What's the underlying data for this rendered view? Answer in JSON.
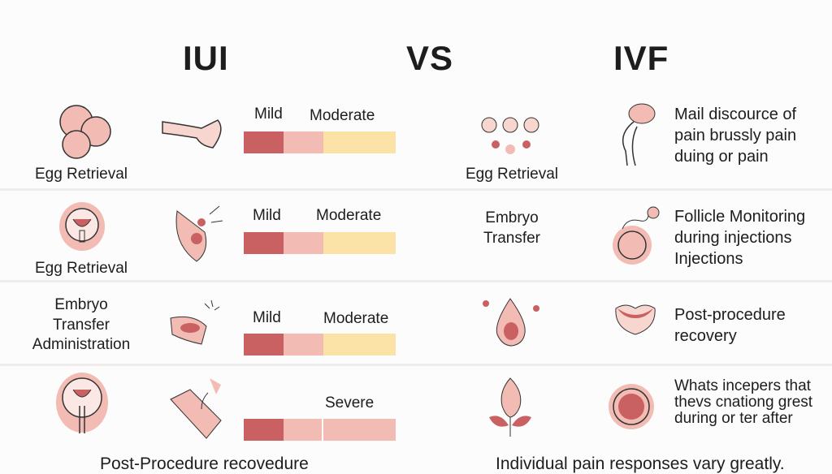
{
  "headers": {
    "left": "IUI",
    "middle": "VS",
    "right": "IVF"
  },
  "colors": {
    "severe": "#c96062",
    "mild": "#f2bcb4",
    "moderate": "#fbe3a8"
  },
  "iui": {
    "rows": [
      {
        "label": [
          "Egg Retrieval"
        ],
        "scale_labels": [
          "Mild",
          "Moderate"
        ],
        "levels": [
          "severe",
          "mild",
          "moderate"
        ]
      },
      {
        "label": [
          "Egg Retrieval"
        ],
        "scale_labels": [
          "Mild",
          "Moderate"
        ],
        "levels": [
          "severe",
          "mild",
          "moderate"
        ]
      },
      {
        "label": [
          "Embryo",
          "Transfer",
          "Administration"
        ],
        "scale_labels": [
          "Mild",
          "Moderate"
        ],
        "levels": [
          "severe",
          "mild",
          "moderate"
        ]
      },
      {
        "label": [],
        "scale_labels": [
          "Severe"
        ],
        "levels": [
          "severe",
          "mild",
          "mild"
        ]
      }
    ],
    "footer": "Post-Procedure recovedure"
  },
  "ivf": {
    "rows": [
      {
        "label": [
          "Egg Retrieval"
        ],
        "description": [
          "Mail discource of",
          "pain brussly pain",
          "duing or pain"
        ]
      },
      {
        "label": [
          "Embryo",
          "Transfer"
        ],
        "description": [
          "Follicle Monitoring",
          "during injections",
          "Injections"
        ]
      },
      {
        "label": [],
        "description": [
          "Post-procedure",
          "recovery"
        ]
      },
      {
        "label": [],
        "description": [
          "Whats incepers that",
          "thevs cnationg grest",
          "during or ter after"
        ]
      }
    ],
    "footer": "Individual pain responses vary greatly."
  }
}
